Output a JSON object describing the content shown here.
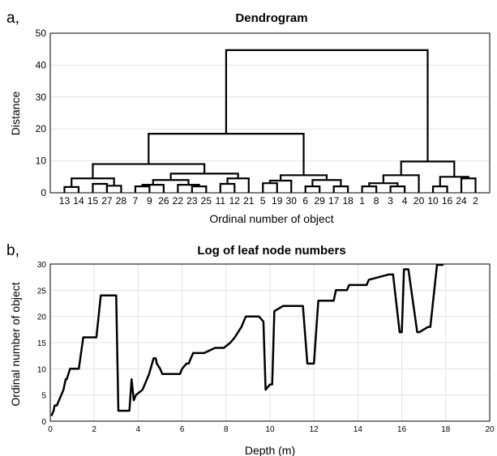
{
  "chart_data": [
    {
      "type": "dendrogram",
      "panel": "a,",
      "title": "Dendrogram",
      "xlabel": "Ordinal number of object",
      "ylabel": "Distance",
      "ylim": [
        0,
        50
      ],
      "yticks": [
        0,
        10,
        20,
        30,
        40,
        50
      ],
      "grid": true,
      "leaf_order": [
        "13",
        "14",
        "15",
        "27",
        "28",
        "7",
        "9",
        "26",
        "22",
        "23",
        "25",
        "11",
        "12",
        "21",
        "5",
        "19",
        "30",
        "6",
        "29",
        "17",
        "18",
        "1",
        "8",
        "3",
        "4",
        "20",
        "10",
        "16",
        "24",
        "2"
      ],
      "links": [
        [
          1,
          2,
          1.8
        ],
        [
          3,
          4,
          2.8
        ],
        [
          4,
          5,
          2.2
        ],
        [
          1.5,
          4.5,
          4.5
        ],
        [
          6,
          7,
          2.0
        ],
        [
          6.5,
          8,
          2.5
        ],
        [
          10,
          11,
          2.0
        ],
        [
          9,
          10.5,
          2.5
        ],
        [
          7.25,
          9.75,
          4.0
        ],
        [
          12,
          13,
          2.8
        ],
        [
          12.5,
          14,
          4.5
        ],
        [
          8.5,
          13.25,
          6.0
        ],
        [
          3,
          10.875,
          9.0
        ],
        [
          15,
          16,
          3.0
        ],
        [
          15.5,
          17,
          3.8
        ],
        [
          18,
          19,
          2.0
        ],
        [
          20,
          21,
          2.0
        ],
        [
          18.5,
          20.5,
          4.0
        ],
        [
          19.5,
          16.25,
          5.5
        ],
        [
          6.9375,
          17.875,
          18.5
        ],
        [
          22,
          23,
          2.0
        ],
        [
          24,
          25,
          2.0
        ],
        [
          22.5,
          24.5,
          3.0
        ],
        [
          23.5,
          26,
          5.5
        ],
        [
          27,
          28,
          2.0
        ],
        [
          29,
          30,
          4.5
        ],
        [
          27.5,
          29.5,
          5.0
        ],
        [
          24.75,
          28.5,
          9.8
        ],
        [
          12.40625,
          26.625,
          44.7
        ]
      ]
    },
    {
      "type": "line",
      "panel": "b,",
      "title": "Log of leaf node numbers",
      "xlabel": "Depth (m)",
      "ylabel": "Ordinal number of object",
      "xlim": [
        0,
        20
      ],
      "ylim": [
        0,
        30
      ],
      "xticks": [
        0,
        2,
        4,
        6,
        8,
        10,
        12,
        14,
        16,
        18,
        20
      ],
      "yticks": [
        0,
        5,
        10,
        15,
        20,
        25,
        30
      ],
      "grid": true,
      "x": [
        0.05,
        0.15,
        0.2,
        0.3,
        0.6,
        0.7,
        0.75,
        0.9,
        1.3,
        1.5,
        2.1,
        2.3,
        3.0,
        3.1,
        3.2,
        3.6,
        3.7,
        3.8,
        3.9,
        4.2,
        4.5,
        4.7,
        4.8,
        4.85,
        5.0,
        5.1,
        5.9,
        6.0,
        6.2,
        6.3,
        6.5,
        7.0,
        7.5,
        7.9,
        8.2,
        8.4,
        8.7,
        8.9,
        9.5,
        9.7,
        9.8,
        10.0,
        10.1,
        10.2,
        10.6,
        10.7,
        11.5,
        11.7,
        12.0,
        12.2,
        12.9,
        13.0,
        13.5,
        13.6,
        14.4,
        14.5,
        15.4,
        15.6,
        15.9,
        16.0,
        16.1,
        16.2,
        16.3,
        16.7,
        16.8,
        17.2,
        17.3,
        17.6,
        17.7,
        17.9
      ],
      "y": [
        1,
        2,
        3,
        3,
        6,
        8,
        8,
        10,
        10,
        16,
        16,
        24,
        24,
        2,
        2,
        2,
        8,
        4,
        5,
        6,
        9,
        12,
        12,
        11,
        10,
        9,
        9,
        10,
        11,
        11,
        13,
        13,
        14,
        14,
        15,
        16,
        18,
        20,
        20,
        19,
        6,
        7,
        7,
        21,
        22,
        22,
        22,
        11,
        11,
        23,
        23,
        25,
        25,
        26,
        26,
        27,
        28,
        28,
        17,
        17,
        29,
        29,
        29,
        17,
        17,
        18,
        18,
        30,
        30,
        30
      ]
    }
  ]
}
